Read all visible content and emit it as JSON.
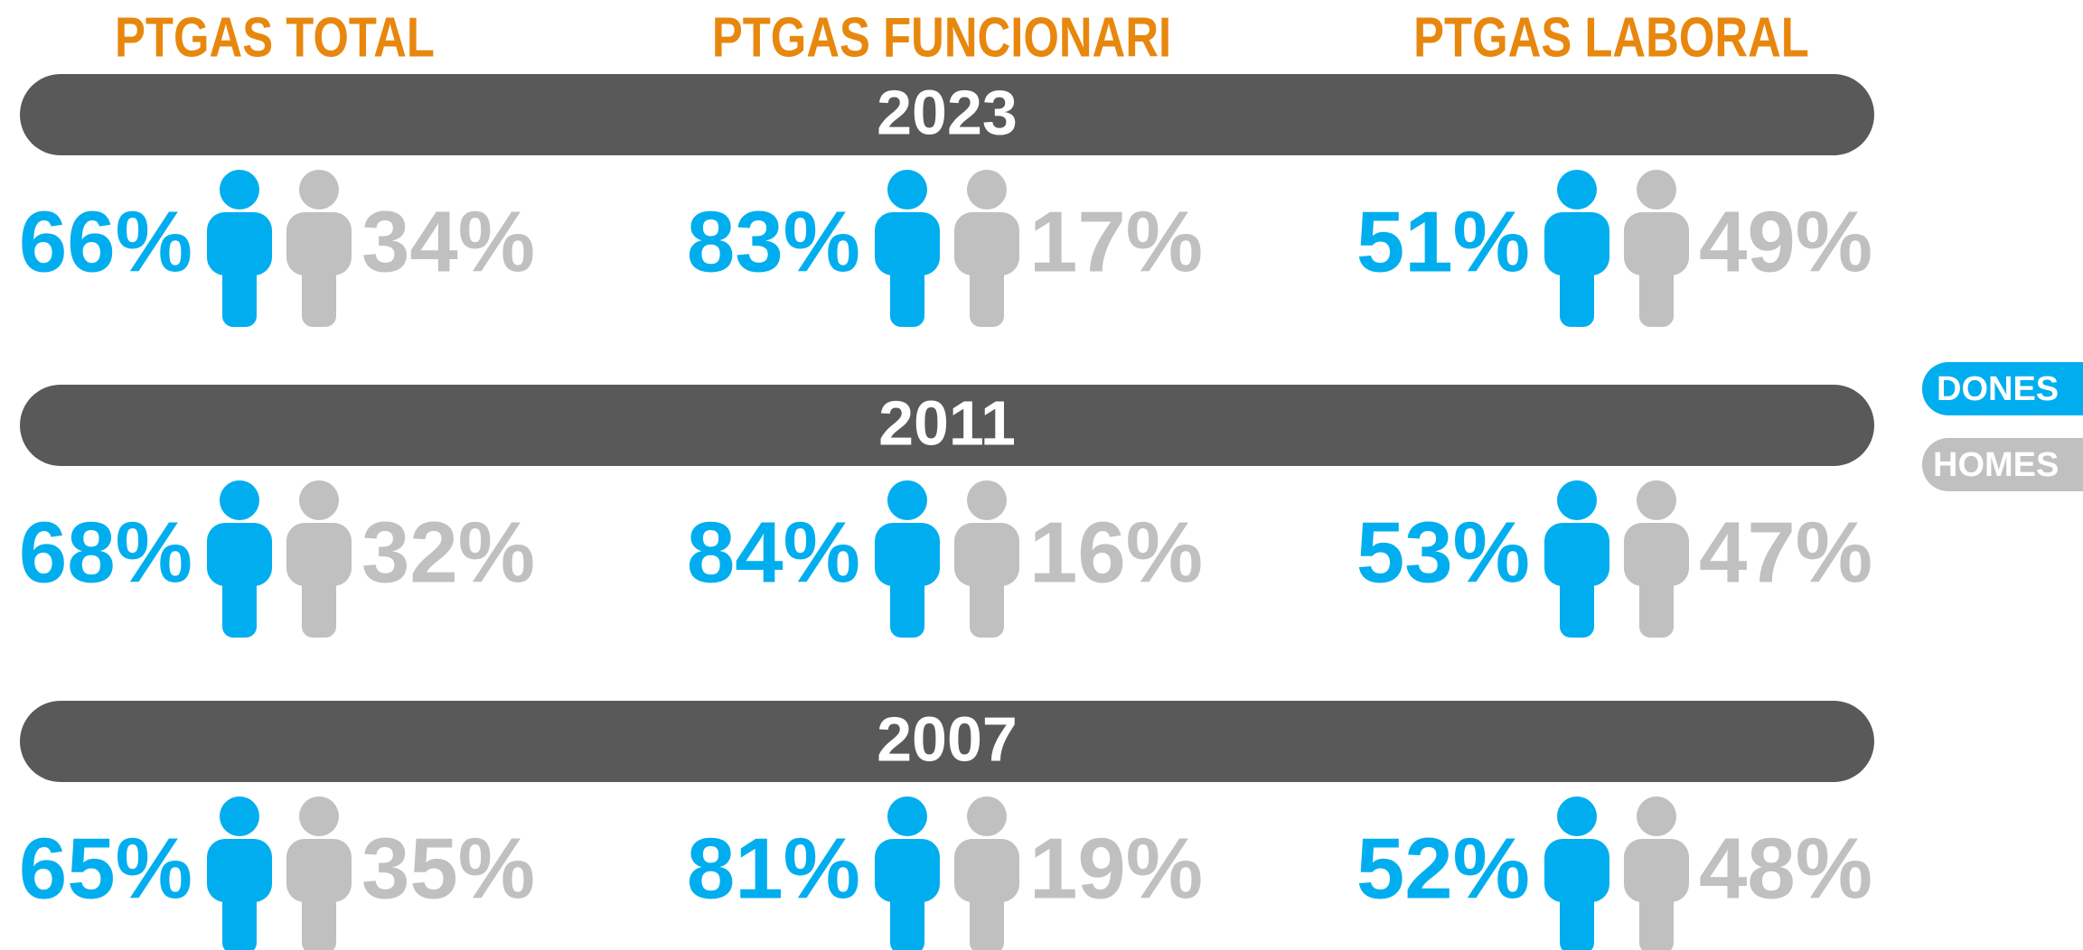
{
  "columns": [
    "PTGAS TOTAL",
    "PTGAS FUNCIONARI",
    "PTGAS LABORAL"
  ],
  "years": [
    {
      "year": "2023",
      "rows": [
        {
          "dones": "66%",
          "homes": "34%"
        },
        {
          "dones": "83%",
          "homes": "17%"
        },
        {
          "dones": "51%",
          "homes": "49%"
        }
      ]
    },
    {
      "year": "2011",
      "rows": [
        {
          "dones": "68%",
          "homes": "32%"
        },
        {
          "dones": "84%",
          "homes": "16%"
        },
        {
          "dones": "53%",
          "homes": "47%"
        }
      ]
    },
    {
      "year": "2007",
      "rows": [
        {
          "dones": "65%",
          "homes": "35%"
        },
        {
          "dones": "81%",
          "homes": "19%"
        },
        {
          "dones": "52%",
          "homes": "48%"
        }
      ]
    }
  ],
  "legend": {
    "dones": "DONES",
    "homes": "HOMES"
  }
}
